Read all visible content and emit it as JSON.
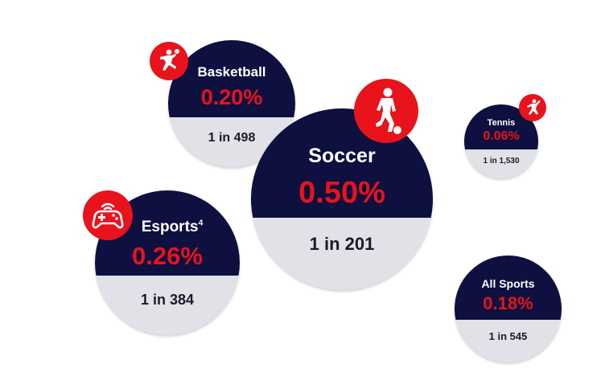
{
  "colors": {
    "bubble_top": "#0e1040",
    "bubble_bottom": "#e1e2e8",
    "accent": "#e8131b",
    "name_text": "#ffffff",
    "odds_text": "#1a1a2a"
  },
  "chart_data": {
    "type": "bubble",
    "title": "",
    "items": [
      {
        "name": "Basketball",
        "value": 0.2,
        "percent_label": "0.20%",
        "odds_label": "1 in 498",
        "icon": "basketball-player-icon"
      },
      {
        "name": "Soccer",
        "value": 0.5,
        "percent_label": "0.50%",
        "odds_label": "1 in 201",
        "icon": "soccer-player-icon"
      },
      {
        "name": "Tennis",
        "value": 0.06,
        "percent_label": "0.06%",
        "odds_label": "1 in 1,530",
        "icon": "tennis-player-icon"
      },
      {
        "name": "Esports",
        "footnote": "4",
        "value": 0.26,
        "percent_label": "0.26%",
        "odds_label": "1 in 384",
        "icon": "gamepad-icon"
      },
      {
        "name": "All Sports",
        "value": 0.18,
        "percent_label": "0.18%",
        "odds_label": "1 in 545",
        "icon": ""
      }
    ]
  }
}
